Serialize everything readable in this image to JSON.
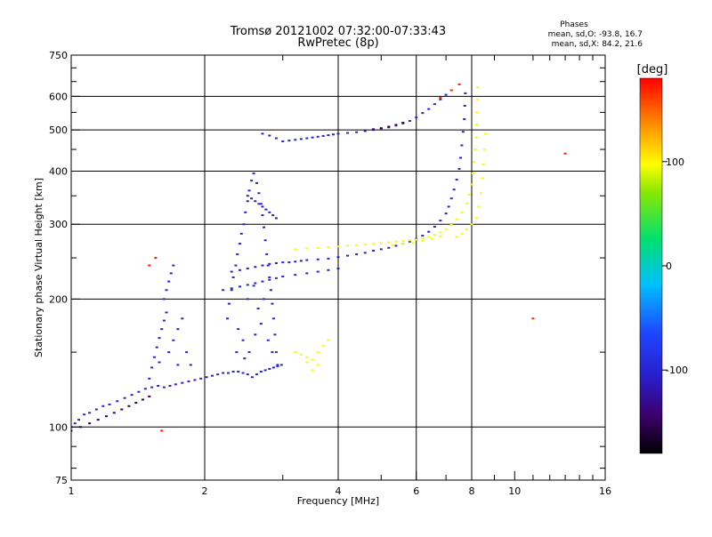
{
  "chart_data": {
    "type": "scatter",
    "title": "Tromsø 20121002 07:32:00-07:33:43",
    "subtitle": "RwPretec (8p)",
    "stats": {
      "heading": "Phases",
      "line_o": "mean, sd,O: -93.8, 16.7",
      "line_x": "mean, sd,X:  84.2, 21.6"
    },
    "xlabel": "Frequency [MHz]",
    "ylabel": "Stationary phase Virtual Height [km]",
    "x_scale": "log",
    "y_scale": "log",
    "xlim": [
      1,
      16
    ],
    "ylim": [
      75,
      750
    ],
    "x_ticks": [
      1,
      2,
      4,
      6,
      8,
      10,
      16
    ],
    "y_ticks": [
      75,
      100,
      200,
      300,
      400,
      500,
      600,
      750
    ],
    "x_gridlines": [
      2,
      4,
      6,
      8
    ],
    "y_gridlines": [
      100,
      200,
      300,
      400,
      500,
      600
    ],
    "colorbar": {
      "label": "[deg]",
      "range": [
        -180,
        180
      ],
      "ticks": [
        100,
        0,
        -100
      ]
    },
    "series": [
      {
        "points": [
          [
            1.0,
            100
          ],
          [
            1.02,
            102
          ],
          [
            1.04,
            104
          ],
          [
            1.07,
            107
          ],
          [
            1.1,
            108
          ],
          [
            1.14,
            110
          ],
          [
            1.18,
            112
          ],
          [
            1.22,
            113
          ],
          [
            1.27,
            115
          ],
          [
            1.32,
            117
          ],
          [
            1.37,
            119
          ],
          [
            1.42,
            121
          ],
          [
            1.47,
            123
          ],
          [
            1.52,
            124
          ],
          [
            1.57,
            125
          ],
          [
            1.62,
            124
          ],
          [
            1.67,
            125
          ],
          [
            1.72,
            126
          ],
          [
            1.78,
            127
          ],
          [
            1.84,
            128
          ],
          [
            1.9,
            129
          ],
          [
            1.96,
            130
          ],
          [
            2.02,
            131
          ],
          [
            2.08,
            132
          ],
          [
            2.14,
            133
          ],
          [
            2.2,
            134
          ],
          [
            2.26,
            134
          ],
          [
            2.32,
            135
          ],
          [
            2.38,
            135
          ],
          [
            2.44,
            134
          ],
          [
            2.5,
            133
          ],
          [
            2.56,
            131
          ],
          [
            2.62,
            133
          ],
          [
            2.68,
            135
          ],
          [
            2.74,
            136
          ],
          [
            2.8,
            137
          ],
          [
            2.86,
            138
          ],
          [
            2.92,
            139
          ],
          [
            2.98,
            140
          ],
          [
            1.5,
            130
          ],
          [
            1.52,
            138
          ],
          [
            1.54,
            146
          ],
          [
            1.56,
            154
          ],
          [
            1.58,
            162
          ],
          [
            1.6,
            170
          ],
          [
            1.62,
            178
          ],
          [
            1.64,
            186
          ],
          [
            1.62,
            200
          ],
          [
            1.64,
            210
          ],
          [
            1.66,
            220
          ],
          [
            1.68,
            230
          ],
          [
            1.7,
            240
          ],
          [
            1.58,
            142
          ],
          [
            1.66,
            150
          ],
          [
            1.7,
            160
          ],
          [
            1.74,
            170
          ],
          [
            1.78,
            180
          ],
          [
            1.74,
            140
          ],
          [
            1.82,
            150
          ],
          [
            1.86,
            140
          ],
          [
            2.25,
            180
          ],
          [
            2.27,
            195
          ],
          [
            2.3,
            210
          ],
          [
            2.32,
            225
          ],
          [
            2.35,
            240
          ],
          [
            2.37,
            255
          ],
          [
            2.4,
            270
          ],
          [
            2.42,
            285
          ],
          [
            2.45,
            300
          ],
          [
            2.47,
            320
          ],
          [
            2.5,
            340
          ],
          [
            2.52,
            360
          ],
          [
            2.55,
            380
          ],
          [
            2.58,
            395
          ],
          [
            2.62,
            375
          ],
          [
            2.65,
            355
          ],
          [
            2.68,
            335
          ],
          [
            2.7,
            315
          ],
          [
            2.72,
            295
          ],
          [
            2.74,
            275
          ],
          [
            2.76,
            255
          ],
          [
            2.78,
            240
          ],
          [
            2.8,
            225
          ],
          [
            2.82,
            210
          ],
          [
            2.84,
            195
          ],
          [
            2.86,
            180
          ],
          [
            2.88,
            165
          ],
          [
            2.9,
            150
          ],
          [
            2.92,
            140
          ],
          [
            2.38,
            170
          ],
          [
            2.44,
            160
          ],
          [
            2.52,
            150
          ],
          [
            2.6,
            165
          ],
          [
            2.68,
            175
          ],
          [
            2.78,
            160
          ],
          [
            2.84,
            150
          ],
          [
            2.5,
            200
          ],
          [
            2.58,
            215
          ],
          [
            2.64,
            190
          ],
          [
            2.72,
            200
          ],
          [
            2.36,
            150
          ],
          [
            2.46,
            145
          ],
          [
            2.3,
            232
          ],
          [
            2.4,
            234
          ],
          [
            2.5,
            236
          ],
          [
            2.6,
            238
          ],
          [
            2.7,
            240
          ],
          [
            2.8,
            242
          ],
          [
            2.9,
            243
          ],
          [
            3.0,
            244
          ],
          [
            3.1,
            244
          ],
          [
            3.2,
            245
          ],
          [
            3.3,
            246
          ],
          [
            3.4,
            247
          ],
          [
            3.6,
            248
          ],
          [
            3.8,
            249
          ],
          [
            4.0,
            251
          ],
          [
            4.2,
            253
          ],
          [
            4.4,
            255
          ],
          [
            4.6,
            257
          ],
          [
            4.8,
            260
          ],
          [
            5.0,
            262
          ],
          [
            5.2,
            264
          ],
          [
            5.4,
            267
          ],
          [
            5.6,
            270
          ],
          [
            5.8,
            273
          ],
          [
            6.0,
            277
          ],
          [
            6.2,
            282
          ],
          [
            6.4,
            288
          ],
          [
            6.6,
            296
          ],
          [
            6.8,
            306
          ],
          [
            7.0,
            318
          ],
          [
            7.1,
            330
          ],
          [
            7.2,
            345
          ],
          [
            7.3,
            362
          ],
          [
            7.4,
            382
          ],
          [
            7.5,
            405
          ],
          [
            7.55,
            430
          ],
          [
            7.6,
            460
          ],
          [
            7.65,
            495
          ],
          [
            7.7,
            530
          ],
          [
            7.72,
            570
          ],
          [
            7.74,
            610
          ],
          [
            2.2,
            210
          ],
          [
            2.3,
            212
          ],
          [
            2.4,
            214
          ],
          [
            2.5,
            216
          ],
          [
            2.6,
            218
          ],
          [
            2.7,
            220
          ],
          [
            2.8,
            222
          ],
          [
            2.9,
            224
          ],
          [
            3.0,
            226
          ],
          [
            3.2,
            228
          ],
          [
            3.4,
            230
          ],
          [
            3.6,
            232
          ],
          [
            3.8,
            234
          ],
          [
            4.0,
            236
          ],
          [
            3.0,
            470
          ],
          [
            3.1,
            472
          ],
          [
            3.2,
            474
          ],
          [
            3.3,
            476
          ],
          [
            3.4,
            478
          ],
          [
            3.5,
            480
          ],
          [
            3.6,
            482
          ],
          [
            3.7,
            484
          ],
          [
            3.8,
            486
          ],
          [
            3.9,
            488
          ],
          [
            4.0,
            490
          ],
          [
            4.2,
            492
          ],
          [
            4.4,
            494
          ],
          [
            4.6,
            497
          ],
          [
            4.8,
            500
          ],
          [
            5.0,
            503
          ],
          [
            5.2,
            507
          ],
          [
            5.4,
            512
          ],
          [
            5.6,
            518
          ],
          [
            5.8,
            525
          ],
          [
            6.0,
            535
          ],
          [
            6.2,
            548
          ],
          [
            6.4,
            560
          ],
          [
            6.6,
            575
          ],
          [
            6.8,
            590
          ],
          [
            7.0,
            605
          ],
          [
            2.7,
            490
          ],
          [
            2.8,
            485
          ],
          [
            2.9,
            478
          ],
          [
            2.5,
            350
          ],
          [
            2.55,
            345
          ],
          [
            2.6,
            340
          ],
          [
            2.65,
            335
          ],
          [
            2.7,
            330
          ],
          [
            2.75,
            325
          ],
          [
            2.8,
            320
          ],
          [
            2.85,
            315
          ],
          [
            2.9,
            310
          ]
        ]
      },
      {
        "points": [
          [
            3.2,
            262
          ],
          [
            3.4,
            263
          ],
          [
            3.6,
            264
          ],
          [
            3.8,
            265
          ],
          [
            4.0,
            266
          ],
          [
            4.2,
            267
          ],
          [
            4.4,
            268
          ],
          [
            4.6,
            269
          ],
          [
            4.8,
            270
          ],
          [
            5.0,
            271
          ],
          [
            5.2,
            272
          ],
          [
            5.4,
            273
          ],
          [
            5.6,
            274
          ],
          [
            5.8,
            275
          ],
          [
            6.0,
            276
          ],
          [
            6.2,
            278
          ],
          [
            6.4,
            280
          ],
          [
            6.6,
            283
          ],
          [
            6.8,
            287
          ],
          [
            7.0,
            292
          ],
          [
            7.2,
            299
          ],
          [
            7.4,
            308
          ],
          [
            7.6,
            320
          ],
          [
            7.8,
            336
          ],
          [
            7.9,
            352
          ],
          [
            8.0,
            372
          ],
          [
            8.05,
            395
          ],
          [
            8.1,
            420
          ],
          [
            8.15,
            450
          ],
          [
            8.18,
            480
          ],
          [
            8.2,
            515
          ],
          [
            8.22,
            550
          ],
          [
            8.24,
            590
          ],
          [
            8.25,
            630
          ],
          [
            7.4,
            280
          ],
          [
            7.6,
            285
          ],
          [
            7.8,
            292
          ],
          [
            8.0,
            300
          ],
          [
            8.2,
            310
          ],
          [
            8.3,
            330
          ],
          [
            8.4,
            355
          ],
          [
            8.45,
            385
          ],
          [
            8.5,
            415
          ],
          [
            8.55,
            450
          ],
          [
            8.58,
            490
          ],
          [
            3.2,
            150
          ],
          [
            3.3,
            148
          ],
          [
            3.4,
            146
          ],
          [
            3.5,
            144
          ],
          [
            3.6,
            150
          ],
          [
            3.7,
            155
          ],
          [
            3.8,
            160
          ],
          [
            3.6,
            140
          ],
          [
            3.5,
            136
          ],
          [
            3.4,
            142
          ],
          [
            5.3,
            268
          ],
          [
            5.6,
            270
          ],
          [
            5.9,
            271
          ],
          [
            6.2,
            274
          ],
          [
            6.5,
            277
          ],
          [
            6.8,
            281
          ]
        ]
      },
      {
        "points": [
          [
            1.0,
            98
          ],
          [
            1.05,
            100
          ],
          [
            1.1,
            102
          ],
          [
            1.15,
            104
          ],
          [
            1.2,
            106
          ],
          [
            1.25,
            108
          ],
          [
            1.3,
            110
          ],
          [
            1.35,
            112
          ],
          [
            1.4,
            114
          ],
          [
            1.45,
            116
          ],
          [
            1.5,
            118
          ],
          [
            4.8,
            502
          ],
          [
            5.0,
            505
          ],
          [
            5.2,
            509
          ],
          [
            5.4,
            514
          ],
          [
            5.6,
            520
          ]
        ]
      },
      {
        "points": [
          [
            1.5,
            240
          ],
          [
            1.55,
            250
          ],
          [
            6.8,
            595
          ],
          [
            7.2,
            620
          ],
          [
            7.5,
            640
          ],
          [
            11.0,
            180
          ],
          [
            13.0,
            440
          ],
          [
            1.6,
            98
          ]
        ]
      }
    ]
  }
}
